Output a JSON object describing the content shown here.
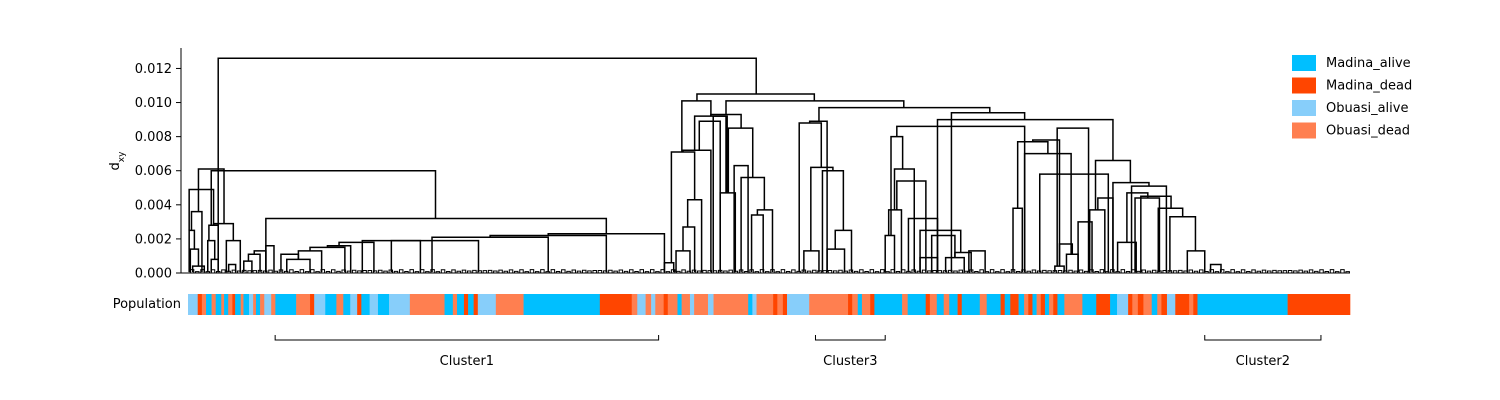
{
  "chart_data": {
    "type": "dendrogram",
    "ylabel": "d",
    "ylabel_subscript": "xy",
    "ylim": [
      0,
      0.0132
    ],
    "yticks": [
      {
        "value": 0.0,
        "label": "0.000"
      },
      {
        "value": 0.002,
        "label": "0.002"
      },
      {
        "value": 0.004,
        "label": "0.004"
      },
      {
        "value": 0.006,
        "label": "0.006"
      },
      {
        "value": 0.008,
        "label": "0.008"
      },
      {
        "value": 0.01,
        "label": "0.010"
      },
      {
        "value": 0.012,
        "label": "0.012"
      }
    ],
    "legend": {
      "placement": "top-right",
      "entries": [
        {
          "label": "Madina_alive",
          "color": "#00bfff"
        },
        {
          "label": "Madina_dead",
          "color": "#ff4500"
        },
        {
          "label": "Obuasi_alive",
          "color": "#87cefa"
        },
        {
          "label": "Obuasi_dead",
          "color": "#ff7f50"
        }
      ]
    },
    "population_bar": {
      "label": "Population",
      "segments": [
        [
          "Obuasi_alive",
          0.7
        ],
        [
          "Madina_dead",
          0.3
        ],
        [
          "Obuasi_dead",
          0.3
        ],
        [
          "Madina_alive",
          0.4
        ],
        [
          "Obuasi_dead",
          0.3
        ],
        [
          "Madina_alive",
          0.4
        ],
        [
          "Obuasi_dead",
          0.2
        ],
        [
          "Madina_alive",
          0.3
        ],
        [
          "Obuasi_dead",
          0.3
        ],
        [
          "Madina_dead",
          0.2
        ],
        [
          "Madina_alive",
          0.4
        ],
        [
          "Obuasi_dead",
          0.2
        ],
        [
          "Madina_alive",
          0.4
        ],
        [
          "Obuasi_alive",
          0.3
        ],
        [
          "Obuasi_dead",
          0.2
        ],
        [
          "Madina_alive",
          0.3
        ],
        [
          "Obuasi_dead",
          0.3
        ],
        [
          "Obuasi_alive",
          0.5
        ],
        [
          "Obuasi_dead",
          0.3
        ],
        [
          "Madina_alive",
          1.5
        ],
        [
          "Obuasi_dead",
          1.0
        ],
        [
          "Madina_dead",
          0.3
        ],
        [
          "Obuasi_alive",
          0.8
        ],
        [
          "Madina_alive",
          0.8
        ],
        [
          "Obuasi_dead",
          0.5
        ],
        [
          "Madina_alive",
          0.5
        ],
        [
          "Obuasi_alive",
          0.5
        ],
        [
          "Madina_dead",
          0.3
        ],
        [
          "Madina_alive",
          0.6
        ],
        [
          "Obuasi_alive",
          0.6
        ],
        [
          "Madina_alive",
          0.8
        ],
        [
          "Obuasi_alive",
          1.5
        ],
        [
          "Obuasi_dead",
          2.5
        ],
        [
          "Madina_alive",
          0.6
        ],
        [
          "Obuasi_dead",
          0.3
        ],
        [
          "Madina_alive",
          0.5
        ],
        [
          "Madina_dead",
          0.3
        ],
        [
          "Madina_alive",
          0.4
        ],
        [
          "Madina_dead",
          0.3
        ],
        [
          "Obuasi_alive",
          1.3
        ],
        [
          "Obuasi_dead",
          2.0
        ],
        [
          "Madina_alive",
          5.5
        ],
        [
          "Madina_dead",
          2.3
        ],
        [
          "Obuasi_dead",
          0.4
        ],
        [
          "Obuasi_alive",
          0.6
        ],
        [
          "Obuasi_dead",
          0.4
        ],
        [
          "Obuasi_alive",
          0.3
        ],
        [
          "Obuasi_dead",
          0.6
        ],
        [
          "Madina_dead",
          0.3
        ],
        [
          "Obuasi_dead",
          0.7
        ],
        [
          "Madina_alive",
          0.3
        ],
        [
          "Obuasi_dead",
          0.6
        ],
        [
          "Obuasi_alive",
          0.3
        ],
        [
          "Obuasi_dead",
          1.0
        ],
        [
          "Obuasi_alive",
          0.4
        ],
        [
          "Obuasi_dead",
          2.5
        ],
        [
          "Madina_alive",
          0.3
        ],
        [
          "Obuasi_alive",
          0.3
        ],
        [
          "Obuasi_dead",
          1.2
        ],
        [
          "Madina_dead",
          0.3
        ],
        [
          "Obuasi_dead",
          0.4
        ],
        [
          "Madina_dead",
          0.3
        ],
        [
          "Obuasi_alive",
          1.6
        ],
        [
          "Obuasi_dead",
          2.8
        ],
        [
          "Madina_dead",
          0.3
        ],
        [
          "Obuasi_dead",
          0.4
        ],
        [
          "Madina_alive",
          0.3
        ],
        [
          "Obuasi_dead",
          0.6
        ],
        [
          "Madina_dead",
          0.3
        ],
        [
          "Madina_alive",
          2.0
        ],
        [
          "Obuasi_dead",
          0.4
        ],
        [
          "Madina_alive",
          1.3
        ],
        [
          "Madina_dead",
          0.3
        ],
        [
          "Obuasi_dead",
          0.5
        ],
        [
          "Madina_alive",
          0.5
        ],
        [
          "Obuasi_dead",
          0.4
        ],
        [
          "Madina_alive",
          0.6
        ],
        [
          "Madina_dead",
          0.3
        ],
        [
          "Madina_alive",
          1.3
        ],
        [
          "Obuasi_dead",
          0.5
        ],
        [
          "Madina_alive",
          1.0
        ],
        [
          "Madina_dead",
          0.3
        ],
        [
          "Madina_alive",
          0.4
        ],
        [
          "Madina_dead",
          0.6
        ],
        [
          "Madina_alive",
          0.4
        ],
        [
          "Obuasi_dead",
          0.3
        ],
        [
          "Madina_dead",
          0.3
        ],
        [
          "Madina_alive",
          0.3
        ],
        [
          "Obuasi_dead",
          0.3
        ],
        [
          "Madina_dead",
          0.3
        ],
        [
          "Madina_alive",
          0.3
        ],
        [
          "Obuasi_dead",
          0.3
        ],
        [
          "Madina_dead",
          0.3
        ],
        [
          "Madina_alive",
          0.5
        ],
        [
          "Obuasi_dead",
          1.3
        ],
        [
          "Madina_alive",
          1.0
        ],
        [
          "Madina_dead",
          1.0
        ],
        [
          "Madina_alive",
          0.5
        ],
        [
          "Obuasi_alive",
          0.8
        ],
        [
          "Madina_dead",
          0.3
        ],
        [
          "Obuasi_dead",
          0.4
        ],
        [
          "Madina_dead",
          0.4
        ],
        [
          "Obuasi_dead",
          0.6
        ],
        [
          "Madina_alive",
          0.4
        ],
        [
          "Obuasi_dead",
          0.3
        ],
        [
          "Madina_dead",
          0.4
        ],
        [
          "Obuasi_alive",
          0.6
        ],
        [
          "Madina_dead",
          1.0
        ],
        [
          "Obuasi_dead",
          0.3
        ],
        [
          "Madina_dead",
          0.3
        ],
        [
          "Madina_alive",
          6.5
        ],
        [
          "Madina_dead",
          4.5
        ]
      ]
    },
    "clusters": [
      {
        "label": "Cluster1",
        "leaf_range": [
          7.5,
          40.5
        ]
      },
      {
        "label": "Cluster3",
        "leaf_range": [
          54.0,
          60.0
        ]
      },
      {
        "label": "Cluster2",
        "leaf_range": [
          87.5,
          97.5
        ]
      }
    ],
    "merges": [
      [
        0.4,
        1.4,
        0.0004
      ],
      [
        0.2,
        0.9,
        0.0014
      ],
      [
        0.1,
        0.55,
        0.0025
      ],
      [
        2.0,
        2.6,
        0.0008
      ],
      [
        1.7,
        2.3,
        0.0019
      ],
      [
        1.8,
        2.6,
        0.0028
      ],
      [
        0.3,
        1.2,
        0.0036
      ],
      [
        0.1,
        2.2,
        0.0049
      ],
      [
        3.5,
        4.1,
        0.0005
      ],
      [
        4.8,
        5.5,
        0.0007
      ],
      [
        5.2,
        6.2,
        0.0011
      ],
      [
        5.7,
        6.7,
        0.0013
      ],
      [
        6.7,
        7.4,
        0.0016
      ],
      [
        3.3,
        4.5,
        0.0019
      ],
      [
        2.2,
        3.9,
        0.0029
      ],
      [
        0.9,
        3.1,
        0.0061
      ],
      [
        8.5,
        10.5,
        0.0008
      ],
      [
        8.0,
        9.5,
        0.0011
      ],
      [
        9.5,
        11.5,
        0.0013
      ],
      [
        10.5,
        13.5,
        0.0015
      ],
      [
        12.0,
        14.0,
        0.0016
      ],
      [
        13.0,
        16.0,
        0.0018
      ],
      [
        15.0,
        20.0,
        0.0019
      ],
      [
        17.5,
        25.0,
        0.0019
      ],
      [
        21.0,
        31.0,
        0.0021
      ],
      [
        26.0,
        36.0,
        0.0022
      ],
      [
        31.0,
        41.0,
        0.0023
      ],
      [
        6.7,
        36.0,
        0.0032
      ],
      [
        2.0,
        21.3,
        0.006
      ],
      [
        41.0,
        41.8,
        0.0006
      ],
      [
        42.0,
        43.2,
        0.0013
      ],
      [
        42.6,
        43.6,
        0.0027
      ],
      [
        43.0,
        44.2,
        0.0043
      ],
      [
        41.6,
        43.6,
        0.0071
      ],
      [
        42.6,
        45.0,
        0.0072
      ],
      [
        45.8,
        47.1,
        0.0047
      ],
      [
        45.2,
        46.4,
        0.0092
      ],
      [
        44.0,
        45.8,
        0.0089
      ],
      [
        47.0,
        48.2,
        0.0063
      ],
      [
        48.5,
        49.5,
        0.0034
      ],
      [
        49.0,
        50.3,
        0.0037
      ],
      [
        47.6,
        49.6,
        0.0056
      ],
      [
        46.5,
        48.6,
        0.0085
      ],
      [
        45.0,
        47.6,
        0.0093
      ],
      [
        43.6,
        46.3,
        0.0092
      ],
      [
        42.5,
        45.0,
        0.0101
      ],
      [
        53.0,
        54.3,
        0.0013
      ],
      [
        55.0,
        56.5,
        0.0014
      ],
      [
        55.7,
        57.1,
        0.0025
      ],
      [
        54.6,
        56.4,
        0.006
      ],
      [
        53.6,
        55.5,
        0.0062
      ],
      [
        52.6,
        54.5,
        0.0088
      ],
      [
        53.5,
        55.0,
        0.0089
      ],
      [
        60.0,
        60.8,
        0.0022
      ],
      [
        60.3,
        61.4,
        0.0037
      ],
      [
        63.0,
        64.5,
        0.0009
      ],
      [
        65.2,
        66.8,
        0.0009
      ],
      [
        66.0,
        67.4,
        0.0012
      ],
      [
        67.2,
        68.6,
        0.0013
      ],
      [
        64.0,
        66.0,
        0.0022
      ],
      [
        63.0,
        66.5,
        0.0025
      ],
      [
        62.0,
        64.5,
        0.0032
      ],
      [
        61.0,
        63.5,
        0.0054
      ],
      [
        60.8,
        62.5,
        0.0061
      ],
      [
        60.5,
        61.5,
        0.008
      ],
      [
        71.0,
        71.8,
        0.0038
      ],
      [
        74.6,
        75.4,
        0.0004
      ],
      [
        75.6,
        76.6,
        0.0011
      ],
      [
        75.0,
        76.1,
        0.0017
      ],
      [
        76.6,
        77.8,
        0.003
      ],
      [
        77.6,
        78.9,
        0.0037
      ],
      [
        78.3,
        79.6,
        0.0044
      ],
      [
        73.3,
        79.2,
        0.0058
      ],
      [
        72.0,
        76.0,
        0.007
      ],
      [
        71.4,
        74.0,
        0.0077
      ],
      [
        72.7,
        75.0,
        0.0078
      ],
      [
        74.8,
        77.5,
        0.0085
      ],
      [
        88.0,
        88.9,
        0.0005
      ],
      [
        86.0,
        87.5,
        0.0013
      ],
      [
        84.5,
        86.7,
        0.0033
      ],
      [
        83.5,
        85.6,
        0.0038
      ],
      [
        82.0,
        84.6,
        0.0045
      ],
      [
        80.0,
        81.6,
        0.0018
      ],
      [
        81.5,
        83.6,
        0.0044
      ],
      [
        80.8,
        82.6,
        0.0047
      ],
      [
        81.2,
        84.2,
        0.0051
      ],
      [
        79.6,
        82.7,
        0.0053
      ],
      [
        78.1,
        81.1,
        0.0066
      ],
      [
        64.5,
        79.6,
        0.009
      ],
      [
        61.0,
        72.0,
        0.0086
      ],
      [
        65.7,
        72.0,
        0.0094
      ],
      [
        54.3,
        69.0,
        0.0097
      ],
      [
        46.3,
        61.6,
        0.0101
      ],
      [
        43.8,
        53.9,
        0.0105
      ],
      [
        2.6,
        48.9,
        0.0126
      ]
    ]
  }
}
